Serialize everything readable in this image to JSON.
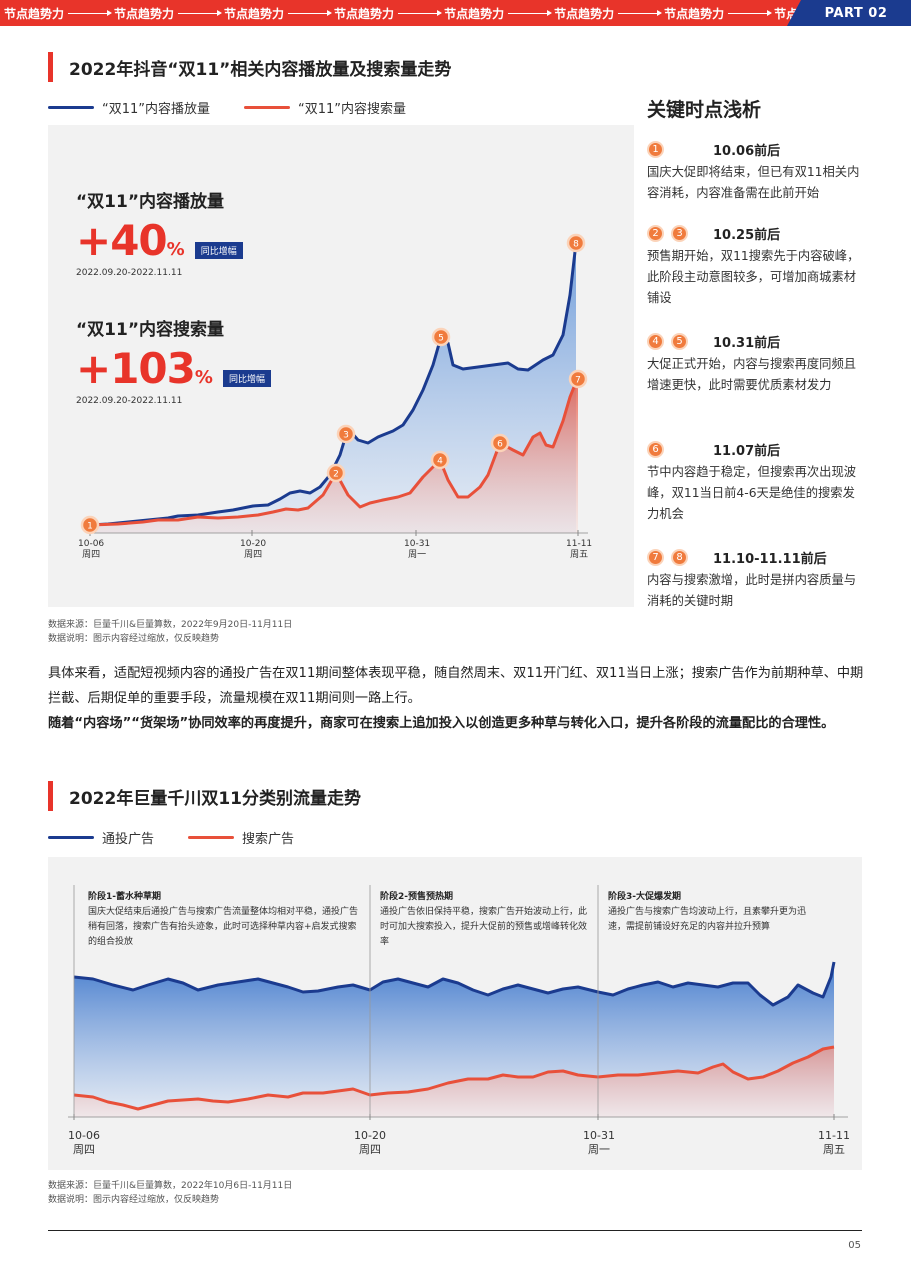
{
  "banner": {
    "items": [
      "节点趋势力",
      "节点趋势力",
      "节点趋势力",
      "节点趋势力",
      "节点趋势力",
      "节点趋势力",
      "节点趋势力",
      "节点趋势力"
    ],
    "part": "PART 02"
  },
  "section1": {
    "title": "2022年抖音“双11”相关内容播放量及搜索量走势",
    "legend": [
      {
        "label": "“双11”内容播放量",
        "color": "#1b3b8f"
      },
      {
        "label": "“双11”内容搜索量",
        "color": "#e8503a"
      }
    ],
    "play": {
      "label": "“双11”内容播放量",
      "pct_num": "+40",
      "pct_sym": "%",
      "yoy": "同比增幅",
      "range": "2022.09.20-2022.11.11"
    },
    "search": {
      "label": "“双11”内容搜索量",
      "pct_num": "+103",
      "pct_sym": "%",
      "yoy": "同比增幅",
      "range": "2022.09.20-2022.11.11"
    },
    "x_ticks": [
      {
        "date": "10-06",
        "day": "周四"
      },
      {
        "date": "10-20",
        "day": "周四"
      },
      {
        "date": "10-31",
        "day": "周一"
      },
      {
        "date": "11-11",
        "day": "周五"
      }
    ],
    "source": "数据来源：巨量千川&巨量算数，2022年9月20日-11月11日",
    "note": "数据说明：图示内容经过缩放，仅反映趋势"
  },
  "key_points": {
    "title": "关键时点浅析",
    "items": [
      {
        "badges": [
          "1"
        ],
        "when": "10.06前后",
        "desc": "国庆大促即将结束，但已有双11相关内容消耗，内容准备需在此前开始"
      },
      {
        "badges": [
          "2",
          "3"
        ],
        "when": "10.25前后",
        "desc": "预售期开始，双11搜索先于内容破峰，此阶段主动意图较多，可增加商城素材铺设"
      },
      {
        "badges": [
          "4",
          "5"
        ],
        "when": "10.31前后",
        "desc": "大促正式开始，内容与搜索再度同频且增速更快，此时需要优质素材发力"
      },
      {
        "badges": [
          "6"
        ],
        "when": "11.07前后",
        "desc": "节中内容趋于稳定，但搜索再次出现波峰，双11当日前4-6天是绝佳的搜索发力机会"
      },
      {
        "badges": [
          "7",
          "8"
        ],
        "when": "11.10-11.11前后",
        "desc": "内容与搜索激增，此时是拼内容质量与消耗的关键时期"
      }
    ]
  },
  "body": {
    "p1": "具体来看，适配短视频内容的通投广告在双11期间整体表现平稳，随自然周末、双11开门红、双11当日上涨；搜索广告作为前期种草、中期拦截、后期促单的重要手段，流量规模在双11期间则一路上行。",
    "p2": "随着“内容场”“货架场”协同效率的再度提升，商家可在搜索上追加投入以创造更多种草与转化入口，提升各阶段的流量配比的合理性。"
  },
  "section2": {
    "title": "2022年巨量千川双11分类别流量走势",
    "legend": [
      {
        "label": "通投广告",
        "color": "#1b3b8f"
      },
      {
        "label": "搜索广告",
        "color": "#e8503a"
      }
    ],
    "phases": [
      {
        "title": "阶段1-蓄水种草期",
        "desc": "国庆大促结束后通投广告与搜索广告流量整体均相对平稳，通投广告稍有回落，搜索广告有抬头迹象，此时可选择种草内容+启发式搜索的组合投放"
      },
      {
        "title": "阶段2-预售预热期",
        "desc": "通投广告依旧保持平稳，搜索广告开始波动上行，此时可加大搜索投入，提升大促前的预售或增峰转化效率"
      },
      {
        "title": "阶段3-大促爆发期",
        "desc": "通投广告与搜索广告均波动上行，且素攀升更为迅速，需提前铺设好充足的内容并拉升预算"
      }
    ],
    "x_ticks": [
      {
        "date": "10-06",
        "day": "周四"
      },
      {
        "date": "10-20",
        "day": "周四"
      },
      {
        "date": "10-31",
        "day": "周一"
      },
      {
        "date": "11-11",
        "day": "周五"
      }
    ],
    "source": "数据来源：巨量千川&巨量算数，2022年10月6日-11月11日",
    "note": "数据说明：图示内容经过缩放，仅反映趋势"
  },
  "page_number": "05",
  "chart_data": [
    {
      "type": "area",
      "title": "2022年抖音“双11”相关内容播放量及搜索量走势",
      "x": [
        "10-06",
        "10-20",
        "10-31",
        "11-11"
      ],
      "series": [
        {
          "name": "“双11”内容播放量",
          "markers": [
            {
              "id": "1",
              "x": "10-06"
            },
            {
              "id": "3",
              "x": "10-25"
            },
            {
              "id": "5",
              "x": "10-31"
            },
            {
              "id": "8",
              "x": "11-11"
            }
          ]
        },
        {
          "name": "“双11”内容搜索量",
          "markers": [
            {
              "id": "2",
              "x": "10-25"
            },
            {
              "id": "4",
              "x": "10-31"
            },
            {
              "id": "6",
              "x": "11-07"
            },
            {
              "id": "7",
              "x": "11-11"
            }
          ]
        }
      ],
      "grid": false
    },
    {
      "type": "area",
      "title": "2022年巨量千川双11分类别流量走势",
      "x": [
        "10-06",
        "10-20",
        "10-31",
        "11-11"
      ],
      "series": [
        {
          "name": "通投广告"
        },
        {
          "name": "搜索广告"
        }
      ],
      "grid": false
    }
  ]
}
